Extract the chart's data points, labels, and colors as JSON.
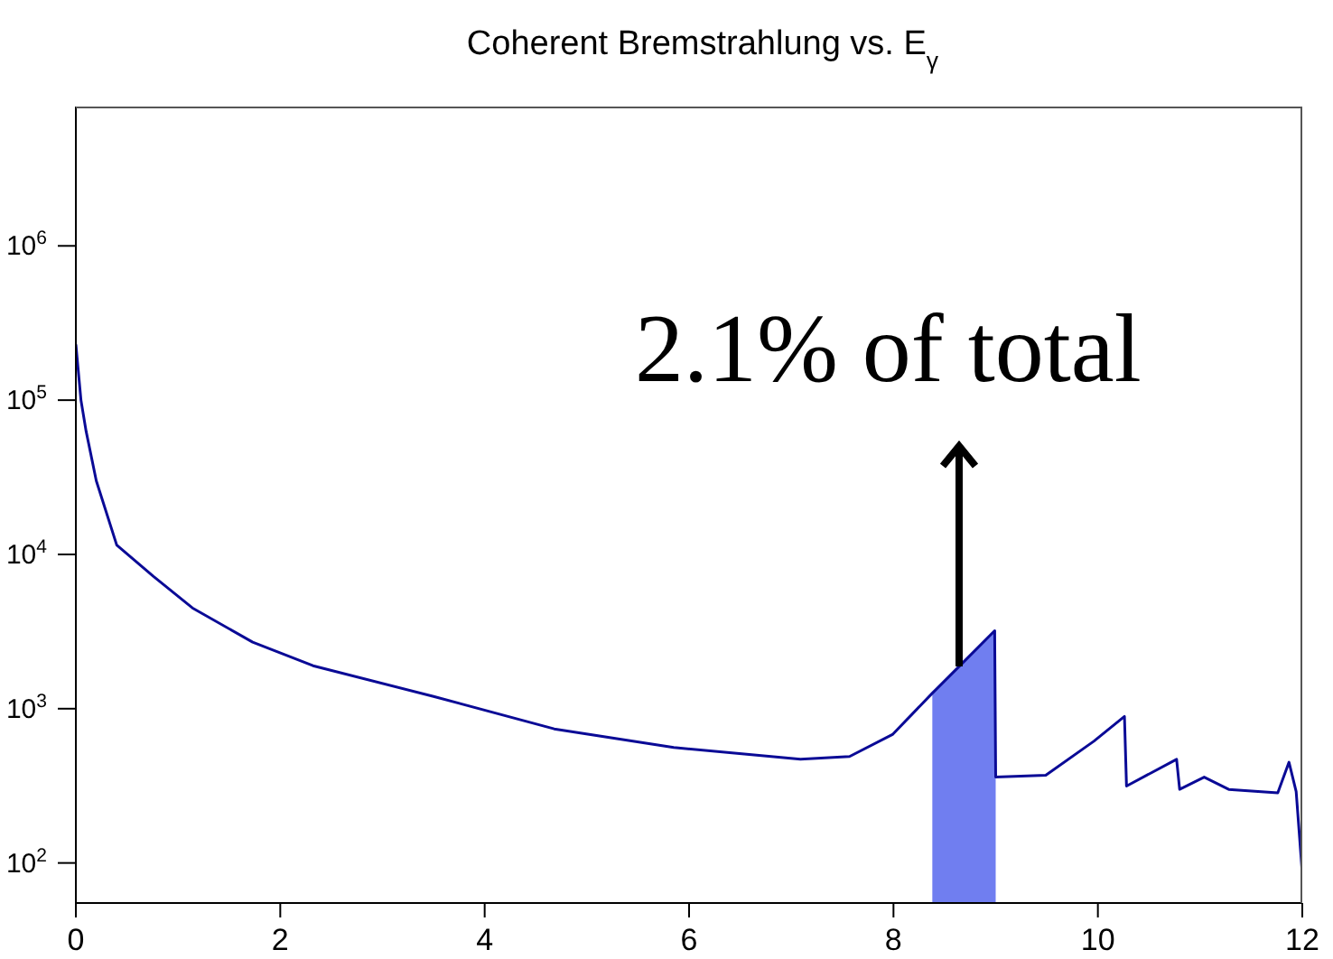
{
  "chart_data": {
    "type": "line",
    "title": "Coherent Bremstrahlung vs. E$_{γ}$",
    "log": "y",
    "marker": "none",
    "line_style": "solid",
    "xlim": [
      0,
      12
    ],
    "xticks": [
      0,
      2,
      4,
      6,
      8,
      10,
      12
    ],
    "ylim": [
      55,
      8000000
    ],
    "yticks": [
      {
        "value": 100,
        "label": "10$^{2}$"
      },
      {
        "value": 1000,
        "label": "10$^{3}$"
      },
      {
        "value": 10000,
        "label": "10$^{4}$"
      },
      {
        "value": 100000,
        "label": "10$^{5}$"
      },
      {
        "value": 1000000,
        "label": "10$^{6}$"
      }
    ],
    "annotations": [
      {
        "text": "2.1% of total",
        "x": 8.65,
        "y": 1900
      }
    ],
    "series": [
      {
        "color": "#0a0a96",
        "x": [
          0,
          0.05,
          0.1,
          0.2,
          0.4,
          0.76,
          1.14,
          1.73,
          2.32,
          3.5,
          4.68,
          5.85,
          7.09,
          7.57,
          7.99,
          8.38,
          8.65,
          8.99,
          9.0,
          9.49,
          9.96,
          10.26,
          10.28,
          10.77,
          10.8,
          11.04,
          11.28,
          11.76,
          11.87,
          11.94,
          12.0
        ],
        "values": [
          230000,
          100000,
          63000,
          30000,
          11500,
          7200,
          4500,
          2700,
          1900,
          1200,
          740,
          560,
          470,
          490,
          680,
          1260,
          1900,
          3200,
          360,
          370,
          615,
          890,
          315,
          470,
          300,
          360,
          300,
          285,
          450,
          290,
          85
        ]
      },
      {
        "type": "area",
        "color": "#6070ee",
        "x": [
          8.38,
          8.65,
          8.99,
          9.0
        ],
        "values": [
          1260,
          1900,
          3200,
          3200
        ]
      }
    ]
  }
}
